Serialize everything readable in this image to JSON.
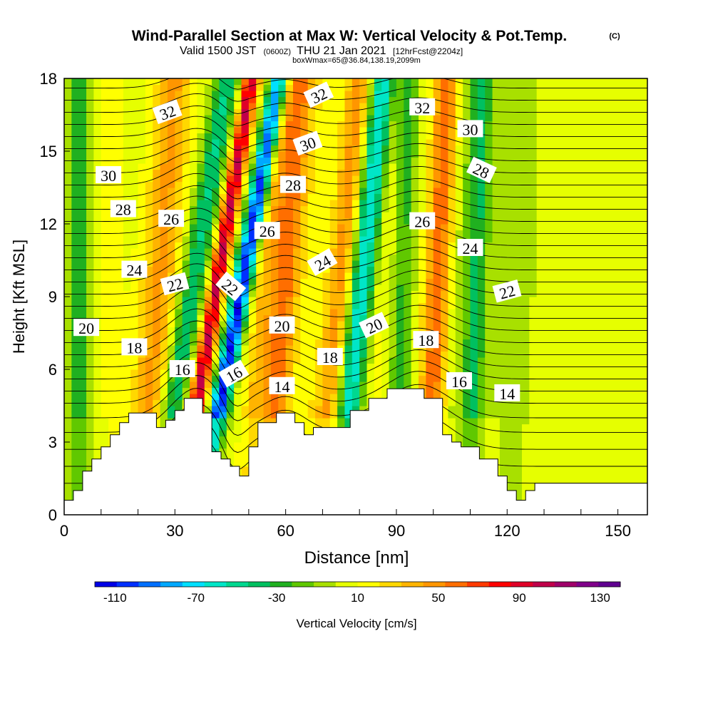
{
  "chart_data": {
    "type": "contour-cross-section",
    "title": "Wind-Parallel Section at Max W: Vertical Velocity & Pot.Temp.",
    "title_mark": "(C)",
    "subtitle_valid": "Valid 1500 JST",
    "subtitle_utc": "(0600Z)",
    "subtitle_date": "THU 21 Jan 2021",
    "subtitle_fcst": "[12hrFcst@2204z]",
    "subtitle2": "boxWmax=65@36.84,138.19,2099m",
    "xlabel": "Distance [nm]",
    "ylabel": "Height [Kft MSL]",
    "xlim": [
      0,
      158
    ],
    "ylim": [
      0,
      18
    ],
    "xticks": [
      0,
      30,
      60,
      90,
      120,
      150
    ],
    "yticks": [
      0,
      3,
      6,
      9,
      12,
      15,
      18
    ],
    "colorbar": {
      "label": "Vertical Velocity [cm/s]",
      "ticks": [
        "-110",
        "-70",
        "-30",
        "10",
        "50",
        "90",
        "130"
      ],
      "range": [
        -120,
        140
      ],
      "colors": [
        "#0000e6",
        "#0030ff",
        "#0070ff",
        "#00a8ff",
        "#00e0ff",
        "#00e6c8",
        "#00d890",
        "#00c060",
        "#20b020",
        "#60c800",
        "#a8e000",
        "#e6ff00",
        "#ffff00",
        "#ffd800",
        "#ffb400",
        "#ff9600",
        "#ff6e00",
        "#ff3a00",
        "#ff0000",
        "#e00028",
        "#c0004a",
        "#a0006a",
        "#80008a",
        "#600090"
      ]
    },
    "terrain_kft": [
      [
        0,
        0.6
      ],
      [
        2.5,
        0.6
      ],
      [
        2.5,
        1.0
      ],
      [
        5,
        1.0
      ],
      [
        5,
        1.8
      ],
      [
        7.5,
        1.8
      ],
      [
        7.5,
        2.3
      ],
      [
        10,
        2.3
      ],
      [
        10,
        2.8
      ],
      [
        12.5,
        2.8
      ],
      [
        12.5,
        3.3
      ],
      [
        15,
        3.3
      ],
      [
        15,
        3.8
      ],
      [
        17.5,
        3.8
      ],
      [
        17.5,
        4.2
      ],
      [
        25,
        4.2
      ],
      [
        25,
        3.6
      ],
      [
        27.5,
        3.6
      ],
      [
        27.5,
        3.9
      ],
      [
        30,
        3.9
      ],
      [
        30,
        4.3
      ],
      [
        32.5,
        4.3
      ],
      [
        32.5,
        4.8
      ],
      [
        37.5,
        4.8
      ],
      [
        37.5,
        4.2
      ],
      [
        40,
        4.2
      ],
      [
        40,
        2.6
      ],
      [
        42.5,
        2.6
      ],
      [
        42.5,
        2.3
      ],
      [
        45,
        2.3
      ],
      [
        45,
        2.0
      ],
      [
        47.5,
        2.0
      ],
      [
        47.5,
        1.6
      ],
      [
        50,
        1.6
      ],
      [
        50,
        2.8
      ],
      [
        52.5,
        2.8
      ],
      [
        52.5,
        3.8
      ],
      [
        57.5,
        3.8
      ],
      [
        57.5,
        4.2
      ],
      [
        62.5,
        4.2
      ],
      [
        62.5,
        3.8
      ],
      [
        65,
        3.8
      ],
      [
        65,
        3.3
      ],
      [
        67.5,
        3.3
      ],
      [
        67.5,
        3.6
      ],
      [
        77.5,
        3.6
      ],
      [
        77.5,
        4.3
      ],
      [
        82.5,
        4.3
      ],
      [
        82.5,
        4.8
      ],
      [
        87.5,
        4.8
      ],
      [
        87.5,
        5.2
      ],
      [
        97.5,
        5.2
      ],
      [
        97.5,
        4.8
      ],
      [
        102.5,
        4.8
      ],
      [
        102.5,
        3.3
      ],
      [
        105,
        3.3
      ],
      [
        105,
        3.0
      ],
      [
        107.5,
        3.0
      ],
      [
        107.5,
        2.8
      ],
      [
        112.5,
        2.8
      ],
      [
        112.5,
        2.3
      ],
      [
        117.5,
        2.3
      ],
      [
        117.5,
        1.6
      ],
      [
        120,
        1.6
      ],
      [
        120,
        1.0
      ],
      [
        122.5,
        1.0
      ],
      [
        122.5,
        0.6
      ],
      [
        125,
        0.6
      ],
      [
        125,
        1.0
      ],
      [
        127.5,
        1.0
      ],
      [
        127.5,
        1.3
      ],
      [
        158,
        1.3
      ]
    ],
    "isentropes": [
      {
        "base": 1.3,
        "amp": 1.4
      },
      {
        "base": 2.0,
        "amp": 1.4
      },
      {
        "base": 2.7,
        "amp": 1.35
      },
      {
        "base": 3.4,
        "amp": 1.3
      },
      {
        "base": 4.0,
        "amp": 1.25
      },
      {
        "base": 4.6,
        "amp": 1.2
      },
      {
        "base": 5.1,
        "amp": 1.15
      },
      {
        "base": 5.6,
        "amp": 1.1
      },
      {
        "base": 6.1,
        "amp": 1.05
      },
      {
        "base": 6.6,
        "amp": 1.0
      },
      {
        "base": 7.1,
        "amp": 1.0
      },
      {
        "base": 7.6,
        "amp": 0.95
      },
      {
        "base": 8.1,
        "amp": 0.95
      },
      {
        "base": 8.6,
        "amp": 0.9
      },
      {
        "base": 9.1,
        "amp": 0.9
      },
      {
        "base": 9.6,
        "amp": 0.85
      },
      {
        "base": 10.1,
        "amp": 0.85
      },
      {
        "base": 10.6,
        "amp": 0.8
      },
      {
        "base": 11.1,
        "amp": 0.8
      },
      {
        "base": 11.6,
        "amp": 0.75
      },
      {
        "base": 12.1,
        "amp": 0.75
      },
      {
        "base": 12.6,
        "amp": 0.7
      },
      {
        "base": 13.1,
        "amp": 0.7
      },
      {
        "base": 13.6,
        "amp": 0.7
      },
      {
        "base": 14.1,
        "amp": 0.65
      },
      {
        "base": 14.6,
        "amp": 0.65
      },
      {
        "base": 15.1,
        "amp": 0.6
      },
      {
        "base": 15.6,
        "amp": 0.6
      },
      {
        "base": 16.1,
        "amp": 0.55
      },
      {
        "base": 16.6,
        "amp": 0.55
      },
      {
        "base": 17.1,
        "amp": 0.5
      },
      {
        "base": 17.6,
        "amp": 0.5
      }
    ],
    "contour_labels": [
      {
        "text": "32",
        "x": 28,
        "y": 16.6,
        "rot": -20
      },
      {
        "text": "30",
        "x": 12,
        "y": 14.0,
        "rot": 0
      },
      {
        "text": "28",
        "x": 16,
        "y": 12.6,
        "rot": 0
      },
      {
        "text": "26",
        "x": 29,
        "y": 12.2,
        "rot": 0
      },
      {
        "text": "24",
        "x": 19,
        "y": 10.1,
        "rot": 0
      },
      {
        "text": "22",
        "x": 30,
        "y": 9.5,
        "rot": -15
      },
      {
        "text": "22",
        "x": 45,
        "y": 9.4,
        "rot": 40
      },
      {
        "text": "20",
        "x": 6,
        "y": 7.7,
        "rot": 0
      },
      {
        "text": "18",
        "x": 19,
        "y": 6.9,
        "rot": 0
      },
      {
        "text": "16",
        "x": 32,
        "y": 6.0,
        "rot": 0
      },
      {
        "text": "16",
        "x": 46,
        "y": 5.8,
        "rot": -30
      },
      {
        "text": "14",
        "x": 59,
        "y": 5.3,
        "rot": 0
      },
      {
        "text": "20",
        "x": 59,
        "y": 7.8,
        "rot": 0
      },
      {
        "text": "18",
        "x": 72,
        "y": 6.5,
        "rot": 0
      },
      {
        "text": "20",
        "x": 84,
        "y": 7.8,
        "rot": -25
      },
      {
        "text": "18",
        "x": 98,
        "y": 7.2,
        "rot": 0
      },
      {
        "text": "16",
        "x": 107,
        "y": 5.5,
        "rot": 0
      },
      {
        "text": "14",
        "x": 120,
        "y": 5.0,
        "rot": 0
      },
      {
        "text": "24",
        "x": 70,
        "y": 10.4,
        "rot": -30
      },
      {
        "text": "26",
        "x": 55,
        "y": 11.7,
        "rot": 0
      },
      {
        "text": "28",
        "x": 62,
        "y": 13.6,
        "rot": 0
      },
      {
        "text": "30",
        "x": 66,
        "y": 15.3,
        "rot": -20
      },
      {
        "text": "32",
        "x": 69,
        "y": 17.3,
        "rot": -25
      },
      {
        "text": "32",
        "x": 97,
        "y": 16.8,
        "rot": 0
      },
      {
        "text": "30",
        "x": 110,
        "y": 15.9,
        "rot": 0
      },
      {
        "text": "28",
        "x": 113,
        "y": 14.2,
        "rot": 25
      },
      {
        "text": "26",
        "x": 97,
        "y": 12.1,
        "rot": 0
      },
      {
        "text": "24",
        "x": 110,
        "y": 11.0,
        "rot": 0
      },
      {
        "text": "22",
        "x": 120,
        "y": 9.2,
        "rot": -15
      }
    ]
  }
}
